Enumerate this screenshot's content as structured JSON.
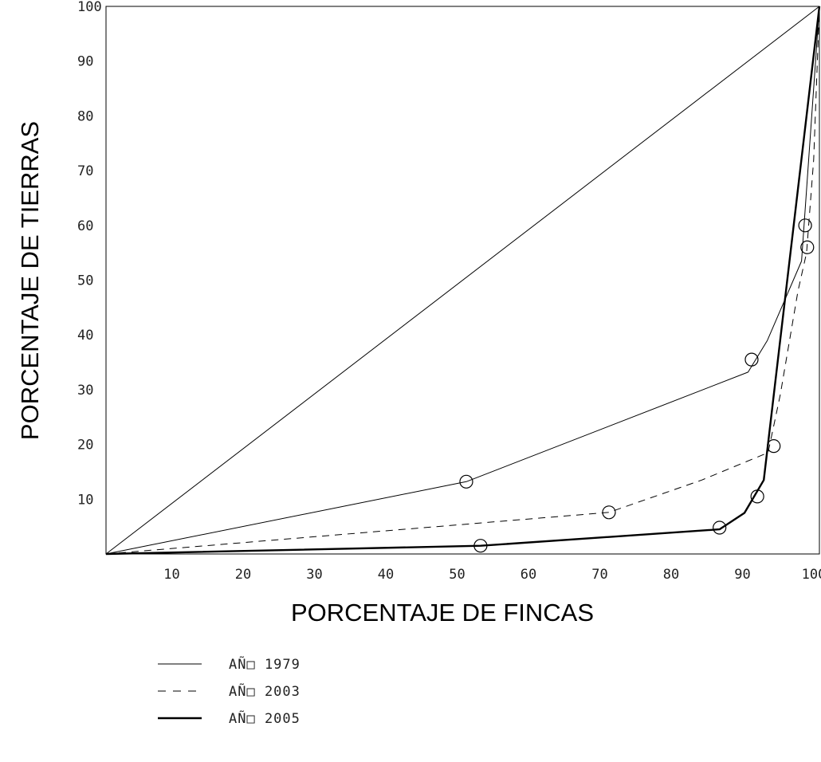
{
  "chart_data": {
    "type": "line",
    "title": "",
    "xlabel": "PORCENTAJE DE FINCAS",
    "ylabel": "PORCENTAJE DE TIERRAS",
    "xlim": [
      0,
      100
    ],
    "ylim": [
      0,
      100
    ],
    "x_ticks": [
      "10",
      "20",
      "30",
      "40",
      "50",
      "60",
      "70",
      "80",
      "90",
      "100"
    ],
    "y_ticks": [
      "10",
      "20",
      "30",
      "40",
      "50",
      "60",
      "70",
      "80",
      "90",
      "100"
    ],
    "grid": false,
    "legend_position": "bottom-left",
    "equality_line": [
      [
        0,
        0
      ],
      [
        100,
        100
      ]
    ],
    "series": [
      {
        "name": "AÑ□ 1979",
        "style": "solid-thin",
        "points": [
          [
            0,
            0
          ],
          [
            50.5,
            13.2
          ],
          [
            90.0,
            33.2
          ],
          [
            92.7,
            39.0
          ],
          [
            97.5,
            53.5
          ],
          [
            100,
            100
          ]
        ],
        "markers": [
          [
            50.5,
            13.2
          ],
          [
            90.5,
            35.5
          ],
          [
            98.0,
            60.0
          ]
        ]
      },
      {
        "name": "AÑ□ 2003",
        "style": "dashed",
        "points": [
          [
            0,
            0
          ],
          [
            70.5,
            7.6
          ],
          [
            83.5,
            13.5
          ],
          [
            92.8,
            18.5
          ],
          [
            94.5,
            29.0
          ],
          [
            97.0,
            48.0
          ],
          [
            98.2,
            55.0
          ],
          [
            99.2,
            72.0
          ],
          [
            100,
            100
          ]
        ],
        "markers": [
          [
            70.5,
            7.6
          ],
          [
            93.6,
            19.7
          ],
          [
            98.3,
            56.0
          ]
        ]
      },
      {
        "name": "AÑ□ 2005",
        "style": "solid-thick",
        "points": [
          [
            0,
            0
          ],
          [
            52.5,
            1.5
          ],
          [
            86.0,
            4.5
          ],
          [
            89.5,
            7.5
          ],
          [
            92.2,
            13.5
          ],
          [
            100,
            100
          ]
        ],
        "markers": [
          [
            52.5,
            1.5
          ],
          [
            86.0,
            4.8
          ],
          [
            91.3,
            10.5
          ]
        ]
      }
    ]
  }
}
